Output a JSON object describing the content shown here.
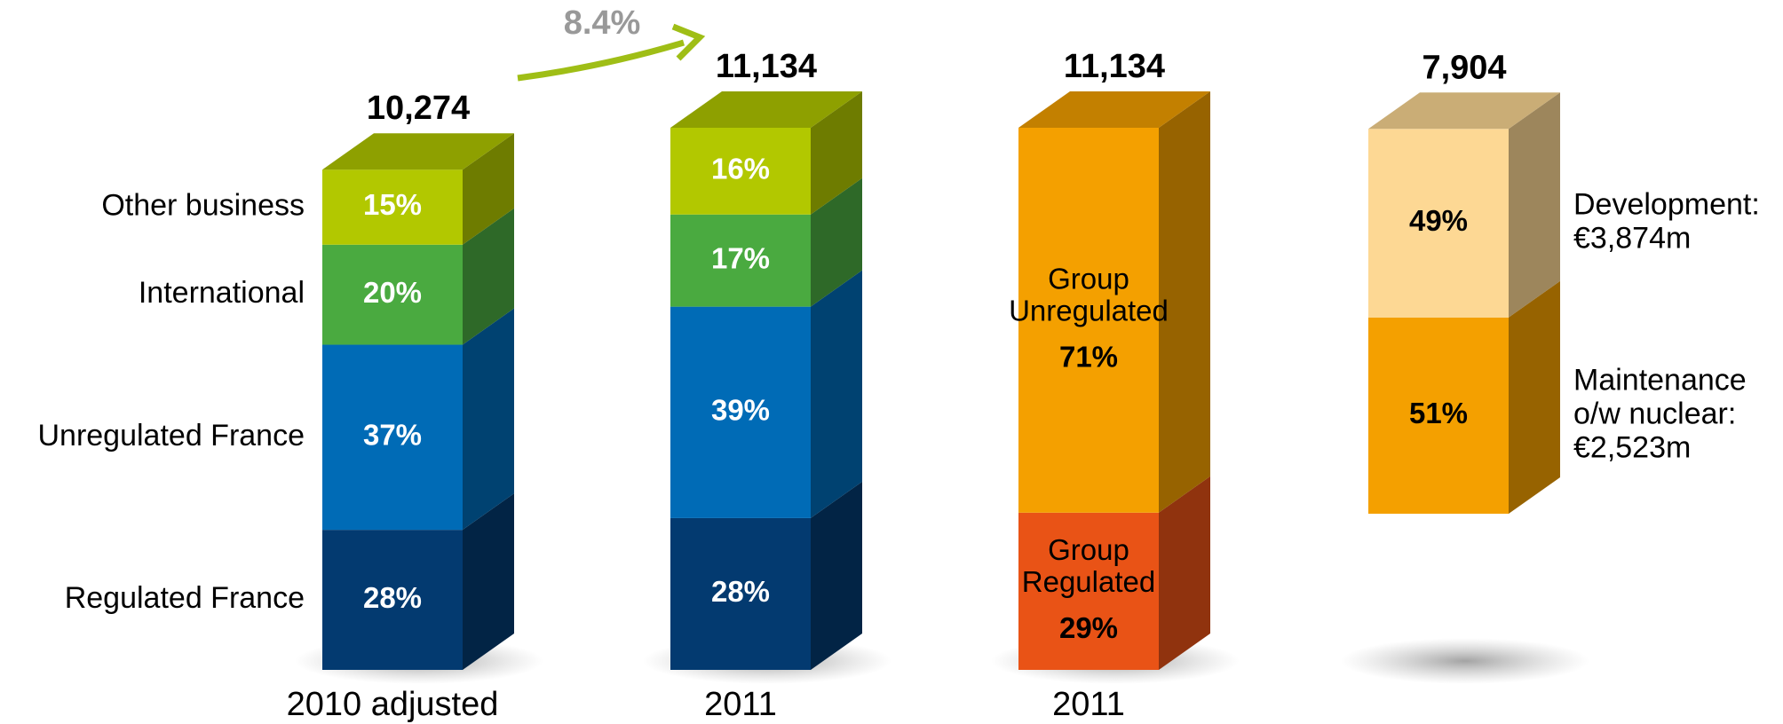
{
  "chart_data": {
    "type": "bar",
    "annotation": "8.4%",
    "bars": [
      {
        "category": "2010 adjusted",
        "total": 10274,
        "total_label": "10,274",
        "name_position": "left",
        "label_color": "#ffffff",
        "segments": [
          {
            "name": [
              "Regulated France"
            ],
            "value": 28,
            "value_label": "28%",
            "color": "#033a70"
          },
          {
            "name": [
              "Unregulated France"
            ],
            "value": 37,
            "value_label": "37%",
            "color": "#006bb6"
          },
          {
            "name": [
              "International"
            ],
            "value": 20,
            "value_label": "20%",
            "color": "#4aaa40"
          },
          {
            "name": [
              "Other business"
            ],
            "value": 15,
            "value_label": "15%",
            "color": "#b2c800"
          }
        ]
      },
      {
        "category": "2011",
        "total": 11134,
        "total_label": "11,134",
        "name_position": "none",
        "label_color": "#ffffff",
        "segments": [
          {
            "value": 28,
            "value_label": "28%",
            "color": "#033a70"
          },
          {
            "value": 39,
            "value_label": "39%",
            "color": "#006bb6"
          },
          {
            "value": 17,
            "value_label": "17%",
            "color": "#4aaa40"
          },
          {
            "value": 16,
            "value_label": "16%",
            "color": "#b2c800"
          }
        ]
      },
      {
        "category": "2011",
        "total": 11134,
        "total_label": "11,134",
        "name_position": "inside",
        "label_color": "#000000",
        "segments": [
          {
            "name": [
              "Group",
              "Regulated"
            ],
            "value": 29,
            "value_label": "29%",
            "color": "#e95316"
          },
          {
            "name": [
              "Group",
              "Unregulated"
            ],
            "value": 71,
            "value_label": "71%",
            "color": "#f4a000"
          }
        ]
      },
      {
        "category": null,
        "total": 7904,
        "total_label": "7,904",
        "name_position": "right",
        "label_color": "#000000",
        "segments": [
          {
            "name": [
              "Maintenance",
              "o/w nuclear:",
              "€2,523m"
            ],
            "value": 51,
            "value_label": "51%",
            "color": "#f4a000"
          },
          {
            "name": [
              "Development:",
              "€3,874m"
            ],
            "value": 49,
            "value_label": "49%",
            "color": "#fdd894"
          }
        ]
      }
    ]
  }
}
